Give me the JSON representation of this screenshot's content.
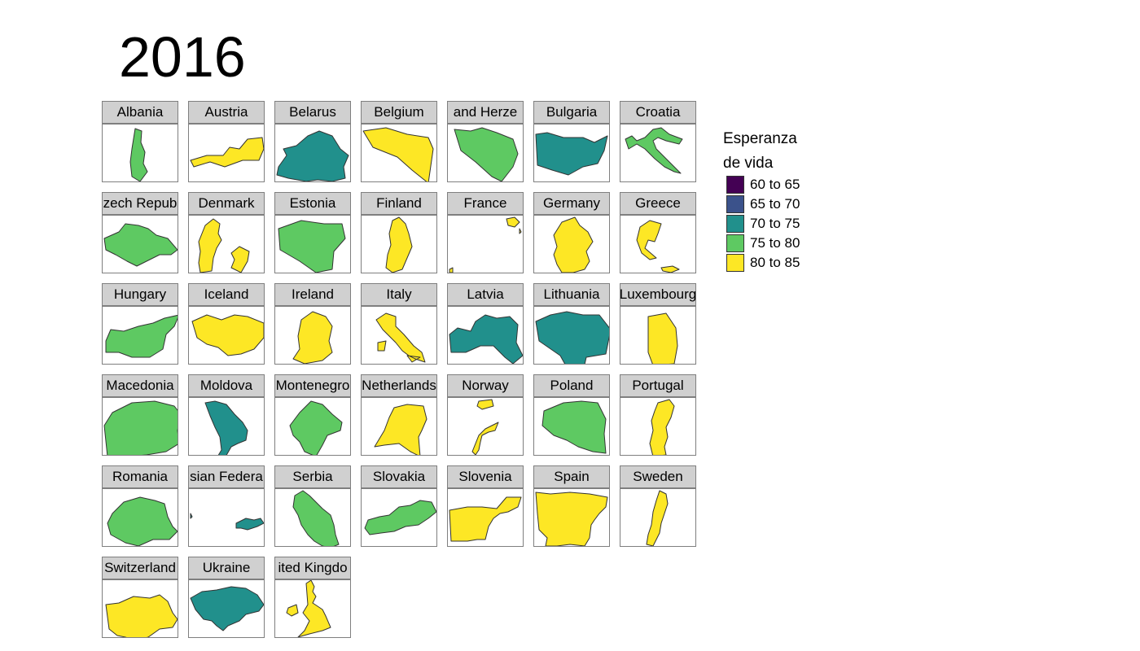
{
  "title": "2016",
  "legend": {
    "title_line1": "Esperanza",
    "title_line2": "de vida",
    "items": [
      {
        "label": "60 to 65",
        "color": "#440154"
      },
      {
        "label": "65 to 70",
        "color": "#3b528b"
      },
      {
        "label": "70 to 75",
        "color": "#21908c"
      },
      {
        "label": "75 to 80",
        "color": "#5ec962"
      },
      {
        "label": "80 to 85",
        "color": "#fde725"
      }
    ]
  },
  "map_data": {
    "type": "faceted choropleth",
    "countries": [
      {
        "name": "Albania",
        "bin": "75 to 80"
      },
      {
        "name": "Austria",
        "bin": "80 to 85"
      },
      {
        "name": "Belarus",
        "bin": "70 to 75"
      },
      {
        "name": "Belgium",
        "bin": "80 to 85"
      },
      {
        "name": "and Herze",
        "bin": "75 to 80"
      },
      {
        "name": "Bulgaria",
        "bin": "70 to 75"
      },
      {
        "name": "Croatia",
        "bin": "75 to 80"
      },
      {
        "name": "zech Repub",
        "bin": "75 to 80"
      },
      {
        "name": "Denmark",
        "bin": "80 to 85"
      },
      {
        "name": "Estonia",
        "bin": "75 to 80"
      },
      {
        "name": "Finland",
        "bin": "80 to 85"
      },
      {
        "name": "France",
        "bin": "80 to 85"
      },
      {
        "name": "Germany",
        "bin": "80 to 85"
      },
      {
        "name": "Greece",
        "bin": "80 to 85"
      },
      {
        "name": "Hungary",
        "bin": "75 to 80"
      },
      {
        "name": "Iceland",
        "bin": "80 to 85"
      },
      {
        "name": "Ireland",
        "bin": "80 to 85"
      },
      {
        "name": "Italy",
        "bin": "80 to 85"
      },
      {
        "name": "Latvia",
        "bin": "70 to 75"
      },
      {
        "name": "Lithuania",
        "bin": "70 to 75"
      },
      {
        "name": "Luxembourg",
        "bin": "80 to 85"
      },
      {
        "name": "Macedonia",
        "bin": "75 to 80"
      },
      {
        "name": "Moldova",
        "bin": "70 to 75"
      },
      {
        "name": "Montenegro",
        "bin": "75 to 80"
      },
      {
        "name": "Netherlands",
        "bin": "80 to 85"
      },
      {
        "name": "Norway",
        "bin": "80 to 85"
      },
      {
        "name": "Poland",
        "bin": "75 to 80"
      },
      {
        "name": "Portugal",
        "bin": "80 to 85"
      },
      {
        "name": "Romania",
        "bin": "75 to 80"
      },
      {
        "name": "sian Federa",
        "bin": "70 to 75"
      },
      {
        "name": "Serbia",
        "bin": "75 to 80"
      },
      {
        "name": "Slovakia",
        "bin": "75 to 80"
      },
      {
        "name": "Slovenia",
        "bin": "80 to 85"
      },
      {
        "name": "Spain",
        "bin": "80 to 85"
      },
      {
        "name": "Sweden",
        "bin": "80 to 85"
      },
      {
        "name": "Switzerland",
        "bin": "80 to 85"
      },
      {
        "name": "Ukraine",
        "bin": "70 to 75"
      },
      {
        "name": "ited Kingdo",
        "bin": "80 to 85"
      }
    ]
  }
}
